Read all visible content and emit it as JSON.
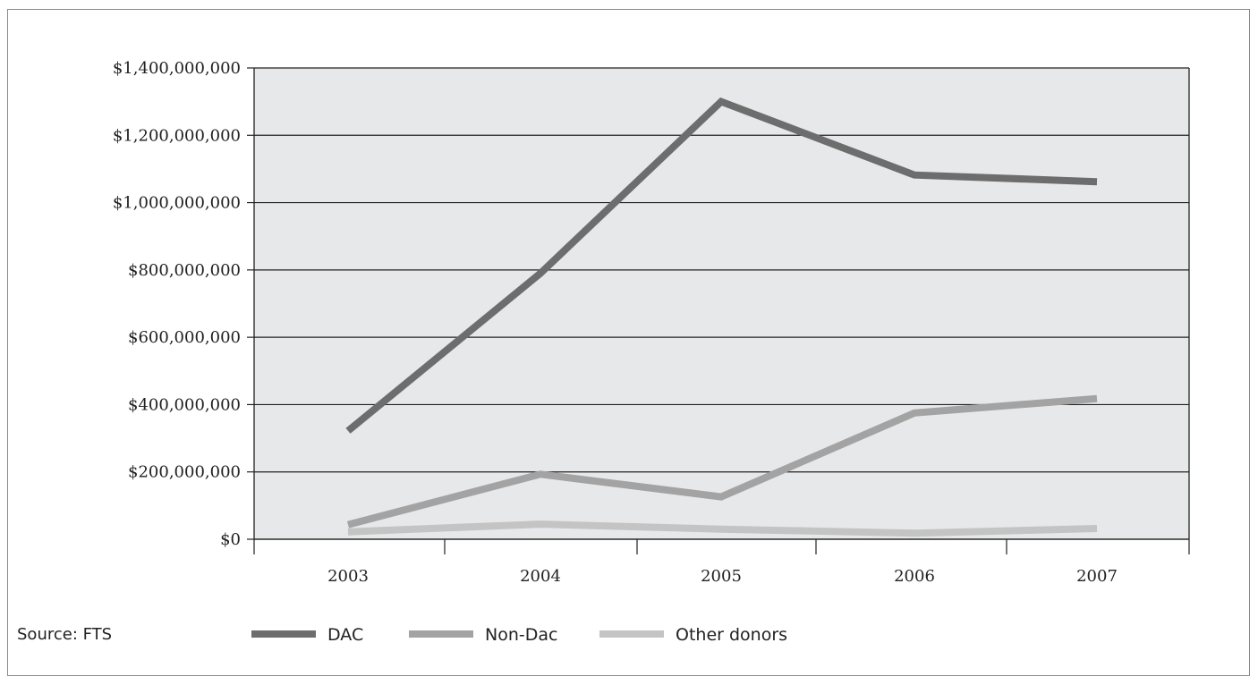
{
  "source_label": "Source: FTS",
  "chart_data": {
    "type": "line",
    "title": "",
    "xlabel": "",
    "ylabel": "",
    "categories": [
      "2003",
      "2004",
      "2005",
      "2006",
      "2007"
    ],
    "ylim": [
      0,
      1400000000
    ],
    "ytick_values": [
      0,
      200000000,
      400000000,
      600000000,
      800000000,
      1000000000,
      1200000000,
      1400000000
    ],
    "ytick_labels": [
      "$0",
      "$200,000,000",
      "$400,000,000",
      "$600,000,000",
      "$800,000,000",
      "$1,000,000,000",
      "$1,200,000,000",
      "$1,400,000,000"
    ],
    "grid": true,
    "legend_position": "bottom",
    "series": [
      {
        "name": "DAC",
        "color": "#6d6d6d",
        "values": [
          322000000,
          790000000,
          1300000000,
          1082000000,
          1062000000
        ]
      },
      {
        "name": "Non-Dac",
        "color": "#a3a3a3",
        "values": [
          43000000,
          193000000,
          126000000,
          375000000,
          418000000
        ]
      },
      {
        "name": "Other donors",
        "color": "#c4c4c4",
        "values": [
          22000000,
          45000000,
          30000000,
          18000000,
          32000000
        ]
      }
    ]
  }
}
